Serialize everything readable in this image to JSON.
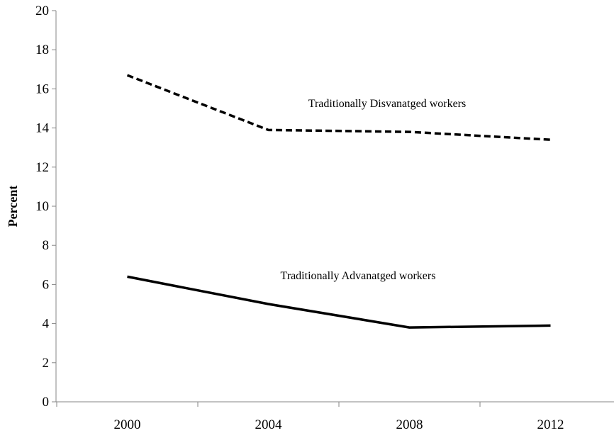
{
  "chart_data": {
    "type": "line",
    "title": "",
    "xlabel": "",
    "ylabel": "Percent",
    "categories": [
      "2000",
      "2004",
      "2008",
      "2012"
    ],
    "ylim": [
      0,
      20
    ],
    "yticks": [
      "0",
      "2",
      "4",
      "6",
      "8",
      "10",
      "12",
      "14",
      "16",
      "18",
      "20"
    ],
    "grid": false,
    "series": [
      {
        "name": "Traditionally Disvanatged workers",
        "values": [
          16.7,
          13.9,
          13.8,
          13.4
        ],
        "style": "dashed",
        "color": "#000000"
      },
      {
        "name": "Traditionally Advanatged  workers",
        "values": [
          6.4,
          5.0,
          3.8,
          3.9
        ],
        "style": "solid",
        "color": "#000000"
      }
    ]
  }
}
